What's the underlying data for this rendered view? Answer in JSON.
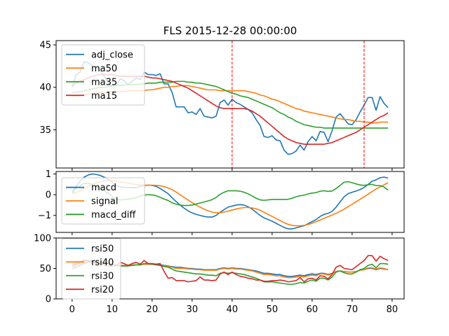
{
  "title": "FLS 2015-12-28 00:00:00",
  "colors": {
    "blue": "#1f77b4",
    "orange": "#ff7f0e",
    "green": "#2ca02c",
    "red": "#d62728",
    "vline": "#ff0000"
  },
  "chart_data": [
    {
      "type": "line",
      "panel": "price",
      "title": "FLS 2015-12-28 00:00:00",
      "xlim": [
        -4,
        83
      ],
      "ylim": [
        30.5,
        45.5
      ],
      "yticks": [
        35,
        40,
        45
      ],
      "xticks": [
        0,
        10,
        20,
        30,
        40,
        50,
        60,
        70,
        80
      ],
      "vlines": [
        40,
        73
      ],
      "legend": "upper-left",
      "series": [
        {
          "name": "adj_close",
          "color": "#1f77b4",
          "values": [
            40.0,
            41.5,
            41.8,
            43.0,
            42.9,
            42.6,
            42.4,
            42.0,
            41.3,
            40.5,
            40.1,
            40.2,
            41.0,
            40.8,
            40.3,
            40.7,
            41.1,
            40.9,
            41.8,
            41.5,
            41.5,
            41.4,
            41.6,
            40.4,
            40.4,
            39.4,
            37.7,
            37.7,
            37.7,
            37.0,
            37.1,
            36.8,
            37.5,
            36.6,
            36.5,
            36.4,
            36.6,
            38.2,
            38.5,
            37.9,
            38.6,
            38.2,
            38.0,
            37.7,
            37.4,
            37.0,
            36.2,
            35.5,
            34.2,
            34.1,
            34.3,
            33.8,
            33.7,
            32.6,
            32.1,
            32.2,
            32.5,
            33.2,
            32.6,
            33.6,
            34.2,
            33.7,
            34.8,
            34.7,
            33.6,
            34.9,
            36.5,
            36.9,
            36.3,
            35.7,
            35.6,
            36.2,
            37.1,
            37.9,
            38.8,
            38.8,
            37.3,
            38.9,
            38.1,
            37.6
          ]
        },
        {
          "name": "ma50",
          "color": "#ff7f0e",
          "values": [
            39.0,
            39.0,
            39.0,
            39.1,
            39.2,
            39.3,
            39.4,
            39.4,
            39.4,
            39.4,
            39.5,
            39.5,
            39.5,
            39.5,
            39.6,
            39.6,
            39.6,
            39.6,
            39.6,
            39.7,
            39.7,
            39.8,
            39.9,
            40.0,
            40.0,
            40.1,
            40.1,
            40.2,
            40.2,
            40.2,
            40.1,
            40.0,
            39.9,
            39.8,
            39.7,
            39.7,
            39.7,
            39.6,
            39.6,
            39.6,
            39.6,
            39.6,
            39.6,
            39.6,
            39.5,
            39.4,
            39.3,
            39.1,
            39.0,
            38.8,
            38.6,
            38.5,
            38.3,
            38.1,
            37.9,
            37.7,
            37.5,
            37.4,
            37.2,
            37.1,
            37.0,
            36.9,
            36.8,
            36.7,
            36.6,
            36.5,
            36.4,
            36.3,
            36.2,
            36.2,
            36.1,
            36.0,
            36.0,
            35.9,
            35.9,
            35.8,
            35.8,
            35.9,
            35.9,
            35.9
          ]
        },
        {
          "name": "ma35",
          "color": "#2ca02c",
          "values": [
            39.4,
            39.4,
            39.5,
            39.6,
            39.7,
            39.8,
            39.9,
            40.0,
            40.0,
            40.1,
            40.1,
            40.2,
            40.2,
            40.3,
            40.3,
            40.3,
            40.3,
            40.4,
            40.4,
            40.5,
            40.5,
            40.5,
            40.6,
            40.6,
            40.6,
            40.6,
            40.7,
            40.7,
            40.7,
            40.6,
            40.6,
            40.5,
            40.5,
            40.4,
            40.3,
            40.2,
            40.1,
            39.9,
            39.7,
            39.5,
            39.3,
            39.2,
            39.0,
            38.9,
            38.8,
            38.6,
            38.4,
            38.2,
            38.0,
            37.8,
            37.6,
            37.3,
            37.0,
            36.8,
            36.5,
            36.3,
            36.0,
            35.8,
            35.6,
            35.5,
            35.4,
            35.3,
            35.3,
            35.2,
            35.2,
            35.2,
            35.2,
            35.2,
            35.2,
            35.2,
            35.2,
            35.2,
            35.2,
            35.2,
            35.2,
            35.2,
            35.2,
            35.2,
            35.2,
            35.2
          ]
        },
        {
          "name": "ma15",
          "color": "#d62728",
          "values": [
            40.2,
            40.5,
            40.7,
            40.9,
            41.1,
            41.3,
            41.4,
            41.5,
            41.5,
            41.5,
            41.5,
            41.4,
            41.3,
            41.3,
            41.3,
            41.3,
            41.3,
            41.3,
            41.3,
            41.2,
            41.1,
            41.1,
            41.0,
            40.9,
            40.8,
            40.7,
            40.5,
            40.3,
            40.1,
            39.9,
            39.6,
            39.3,
            39.0,
            38.7,
            38.4,
            38.1,
            37.8,
            37.6,
            37.5,
            37.5,
            37.5,
            37.5,
            37.5,
            37.5,
            37.4,
            37.2,
            36.9,
            36.6,
            36.2,
            35.8,
            35.4,
            35.0,
            34.6,
            34.2,
            33.9,
            33.7,
            33.5,
            33.4,
            33.3,
            33.3,
            33.3,
            33.3,
            33.3,
            33.3,
            33.4,
            33.5,
            33.7,
            33.9,
            34.1,
            34.3,
            34.5,
            34.7,
            35.0,
            35.3,
            35.6,
            35.9,
            36.2,
            36.5,
            36.7,
            37.0
          ]
        }
      ]
    },
    {
      "type": "line",
      "panel": "macd",
      "xlim": [
        -4,
        83
      ],
      "ylim": [
        -1.82,
        1.12
      ],
      "yticks": [
        -1,
        0,
        1
      ],
      "xticks": [
        0,
        10,
        20,
        30,
        40,
        50,
        60,
        70,
        80
      ],
      "legend": "upper-left",
      "series": [
        {
          "name": "macd",
          "color": "#1f77b4",
          "values": [
            0.15,
            0.4,
            0.65,
            0.85,
            0.95,
            1.0,
            0.98,
            0.93,
            0.85,
            0.75,
            0.6,
            0.45,
            0.38,
            0.36,
            0.34,
            0.34,
            0.35,
            0.4,
            0.44,
            0.46,
            0.45,
            0.4,
            0.3,
            0.18,
            0.05,
            -0.15,
            -0.33,
            -0.5,
            -0.65,
            -0.78,
            -0.88,
            -0.95,
            -1.0,
            -1.05,
            -1.08,
            -1.08,
            -1.0,
            -0.85,
            -0.72,
            -0.6,
            -0.55,
            -0.5,
            -0.48,
            -0.5,
            -0.58,
            -0.7,
            -0.85,
            -1.0,
            -1.12,
            -1.2,
            -1.28,
            -1.38,
            -1.48,
            -1.58,
            -1.65,
            -1.65,
            -1.6,
            -1.55,
            -1.5,
            -1.4,
            -1.3,
            -1.2,
            -1.05,
            -0.95,
            -0.9,
            -0.8,
            -0.6,
            -0.35,
            -0.1,
            0.05,
            0.12,
            0.18,
            0.25,
            0.35,
            0.5,
            0.65,
            0.72,
            0.82,
            0.85,
            0.8
          ]
        },
        {
          "name": "signal",
          "color": "#ff7f0e",
          "values": [
            0.05,
            0.1,
            0.2,
            0.3,
            0.4,
            0.5,
            0.57,
            0.62,
            0.66,
            0.68,
            0.68,
            0.66,
            0.63,
            0.6,
            0.56,
            0.52,
            0.49,
            0.47,
            0.46,
            0.46,
            0.46,
            0.45,
            0.43,
            0.39,
            0.33,
            0.24,
            0.13,
            0.0,
            -0.13,
            -0.26,
            -0.38,
            -0.5,
            -0.6,
            -0.7,
            -0.78,
            -0.84,
            -0.87,
            -0.87,
            -0.84,
            -0.79,
            -0.74,
            -0.69,
            -0.65,
            -0.62,
            -0.62,
            -0.64,
            -0.68,
            -0.75,
            -0.85,
            -0.95,
            -1.05,
            -1.15,
            -1.25,
            -1.35,
            -1.43,
            -1.48,
            -1.5,
            -1.5,
            -1.48,
            -1.44,
            -1.38,
            -1.3,
            -1.22,
            -1.14,
            -1.06,
            -0.98,
            -0.9,
            -0.8,
            -0.7,
            -0.58,
            -0.46,
            -0.34,
            -0.22,
            -0.1,
            0.02,
            0.15,
            0.28,
            0.38,
            0.48,
            0.58
          ]
        },
        {
          "name": "macd_diff",
          "color": "#2ca02c",
          "values": [
            0.1,
            0.3,
            0.45,
            0.55,
            0.55,
            0.5,
            0.41,
            0.31,
            0.19,
            0.07,
            -0.08,
            -0.21,
            -0.25,
            -0.24,
            -0.22,
            -0.18,
            -0.14,
            -0.07,
            -0.02,
            0.0,
            -0.01,
            -0.05,
            -0.13,
            -0.21,
            -0.28,
            -0.39,
            -0.46,
            -0.5,
            -0.52,
            -0.52,
            -0.5,
            -0.45,
            -0.4,
            -0.35,
            -0.3,
            -0.24,
            -0.13,
            0.02,
            0.12,
            0.19,
            0.19,
            0.19,
            0.17,
            0.12,
            0.04,
            -0.06,
            -0.17,
            -0.25,
            -0.27,
            -0.25,
            -0.23,
            -0.23,
            -0.23,
            -0.23,
            -0.22,
            -0.17,
            -0.1,
            -0.05,
            -0.02,
            0.04,
            0.08,
            0.1,
            0.17,
            0.19,
            0.16,
            0.18,
            0.3,
            0.45,
            0.6,
            0.63,
            0.58,
            0.52,
            0.47,
            0.45,
            0.48,
            0.5,
            0.44,
            0.44,
            0.37,
            0.22
          ]
        }
      ]
    },
    {
      "type": "line",
      "panel": "rsi",
      "xlim": [
        -4,
        83
      ],
      "ylim": [
        0,
        100
      ],
      "yticks": [
        0,
        50,
        100
      ],
      "xticks": [
        0,
        10,
        20,
        30,
        40,
        50,
        60,
        70,
        80
      ],
      "legend": "upper-left",
      "series": [
        {
          "name": "rsi50",
          "color": "#1f77b4",
          "values": [
            50,
            52,
            55,
            58,
            60,
            61,
            60,
            60,
            59,
            58,
            57,
            56,
            55,
            55,
            55,
            55,
            56,
            56,
            57,
            57,
            57,
            56,
            56,
            55,
            54,
            53,
            52,
            52,
            51,
            50,
            50,
            49,
            49,
            48,
            48,
            48,
            48,
            50,
            51,
            50,
            51,
            50,
            50,
            49,
            48,
            47,
            46,
            44,
            42,
            42,
            41,
            40,
            40,
            38,
            37,
            37,
            38,
            39,
            38,
            40,
            41,
            40,
            42,
            42,
            40,
            42,
            45,
            46,
            45,
            44,
            44,
            45,
            47,
            48,
            50,
            50,
            48,
            50,
            49,
            48
          ]
        },
        {
          "name": "rsi40",
          "color": "#ff7f0e",
          "values": [
            53,
            55,
            58,
            60,
            61,
            61,
            60,
            60,
            59,
            58,
            57,
            56,
            55,
            55,
            55,
            56,
            56,
            56,
            57,
            57,
            57,
            56,
            55,
            54,
            53,
            52,
            50,
            50,
            50,
            49,
            49,
            48,
            48,
            47,
            47,
            47,
            47,
            49,
            50,
            49,
            50,
            49,
            49,
            48,
            47,
            46,
            44,
            42,
            40,
            40,
            39,
            38,
            38,
            36,
            35,
            35,
            36,
            37,
            36,
            38,
            39,
            38,
            41,
            41,
            39,
            41,
            45,
            46,
            45,
            44,
            44,
            45,
            47,
            48,
            51,
            51,
            49,
            51,
            50,
            48
          ]
        },
        {
          "name": "rsi30",
          "color": "#2ca02c",
          "values": [
            54,
            57,
            60,
            63,
            63,
            62,
            61,
            61,
            59,
            58,
            57,
            55,
            54,
            54,
            54,
            55,
            56,
            56,
            58,
            58,
            57,
            56,
            55,
            53,
            52,
            49,
            46,
            45,
            44,
            43,
            42,
            41,
            41,
            40,
            39,
            39,
            38,
            42,
            43,
            42,
            43,
            42,
            41,
            40,
            38,
            36,
            34,
            31,
            28,
            28,
            28,
            27,
            26,
            25,
            24,
            24,
            25,
            27,
            26,
            29,
            31,
            29,
            34,
            34,
            31,
            36,
            44,
            46,
            43,
            41,
            41,
            44,
            48,
            50,
            55,
            57,
            51,
            58,
            58,
            57
          ]
        },
        {
          "name": "rsi20",
          "color": "#d62728",
          "values": [
            57,
            58,
            61,
            64,
            62,
            60,
            58,
            58,
            56,
            54,
            54,
            55,
            60,
            58,
            55,
            58,
            60,
            57,
            63,
            58,
            58,
            57,
            58,
            45,
            34,
            35,
            30,
            30,
            30,
            28,
            29,
            30,
            36,
            31,
            31,
            30,
            31,
            41,
            44,
            40,
            44,
            40,
            37,
            36,
            34,
            33,
            31,
            31,
            29,
            29,
            30,
            30,
            31,
            30,
            28,
            29,
            30,
            35,
            28,
            33,
            34,
            31,
            38,
            37,
            33,
            40,
            52,
            55,
            50,
            49,
            48,
            53,
            58,
            63,
            71,
            71,
            62,
            70,
            66,
            63
          ]
        }
      ]
    }
  ]
}
